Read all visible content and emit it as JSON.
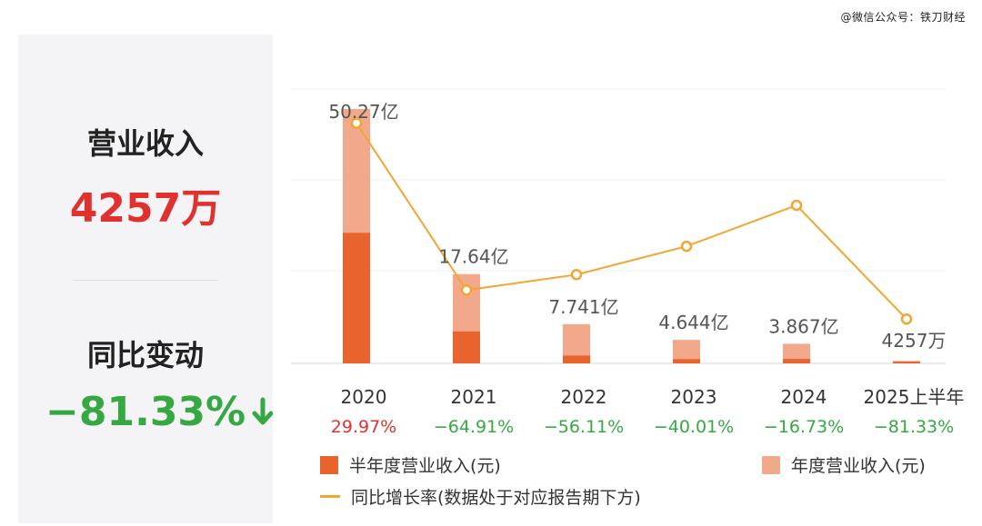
{
  "watermark": "@微信公众号：铁刀财经",
  "summary": {
    "revenue_label": "营业收入",
    "revenue_value": "4257万",
    "yoy_label": "同比变动",
    "yoy_value": "−81.33%",
    "yoy_arrow_icon": "arrow-down-icon"
  },
  "colors": {
    "half_year": "#e8632e",
    "annual": "#f2a98b",
    "line": "#f2a531",
    "positive": "#e0312f",
    "negative": "#35a842"
  },
  "chart_data": {
    "type": "bar+line",
    "categories": [
      "2020",
      "2021",
      "2022",
      "2023",
      "2024",
      "2025上半年"
    ],
    "series": [
      {
        "name": "半年度营业收入(元)",
        "type": "bar",
        "values_yi": [
          25.8,
          6.3,
          1.55,
          0.85,
          0.88,
          0.4257
        ]
      },
      {
        "name": "年度营业收入(元)",
        "type": "bar",
        "values_yi": [
          50.27,
          17.64,
          7.741,
          4.644,
          3.867,
          null
        ]
      },
      {
        "name": "同比增长率(数据处于对应报告期下方)",
        "type": "line",
        "values_pct": [
          29.97,
          -64.91,
          -56.11,
          -40.01,
          -16.73,
          -81.33
        ]
      }
    ],
    "bar_labels": [
      "50.27亿",
      "17.64亿",
      "7.741亿",
      "4.644亿",
      "3.867亿",
      "4257万"
    ],
    "growth_labels": [
      "29.97%",
      "−64.91%",
      "−56.11%",
      "−40.01%",
      "−16.73%",
      "−81.33%"
    ],
    "ylim_yi": [
      0,
      56
    ],
    "ylim_pct": [
      -90,
      40
    ],
    "grid": true
  },
  "legend": {
    "half_year": "半年度营业收入(元)",
    "annual": "年度营业收入(元)",
    "line": "同比增长率(数据处于对应报告期下方)"
  }
}
